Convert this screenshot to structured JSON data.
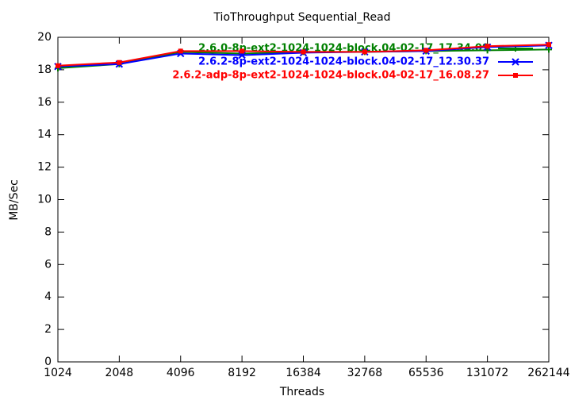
{
  "chart_data": {
    "type": "line",
    "title": "TioThroughput Sequential_Read",
    "xlabel": "Threads",
    "ylabel": "MB/Sec",
    "xscale": "log",
    "x": [
      1024,
      2048,
      4096,
      8192,
      16384,
      32768,
      65536,
      131072,
      262144
    ],
    "xlim": [
      1024,
      262144
    ],
    "xticks": [
      1024,
      2048,
      4096,
      8192,
      16384,
      32768,
      65536,
      131072,
      262144
    ],
    "ylim": [
      0,
      20
    ],
    "yticks": [
      0,
      2,
      4,
      6,
      8,
      10,
      12,
      14,
      16,
      18,
      20
    ],
    "legend": "top-right",
    "series": [
      {
        "name": "2.6.0-8p-ext2-1024-1024-block.04-02-17_17.34.09",
        "color": "#008000",
        "marker": "plus",
        "values": [
          18.1,
          18.35,
          19.1,
          19.0,
          19.1,
          19.1,
          19.15,
          19.2,
          19.25
        ]
      },
      {
        "name": "2.6.2-8p-ext2-1024-1024-block.04-02-17_12.30.37",
        "color": "#0000ff",
        "marker": "cross",
        "values": [
          18.2,
          18.35,
          19.0,
          18.9,
          19.05,
          19.1,
          19.15,
          19.4,
          19.5
        ]
      },
      {
        "name": "2.6.2-adp-8p-ext2-1024-1024-block.04-02-17_16.08.27",
        "color": "#ff0000",
        "marker": "square",
        "values": [
          18.25,
          18.45,
          19.15,
          19.15,
          19.1,
          19.1,
          19.2,
          19.45,
          19.55
        ]
      }
    ]
  }
}
